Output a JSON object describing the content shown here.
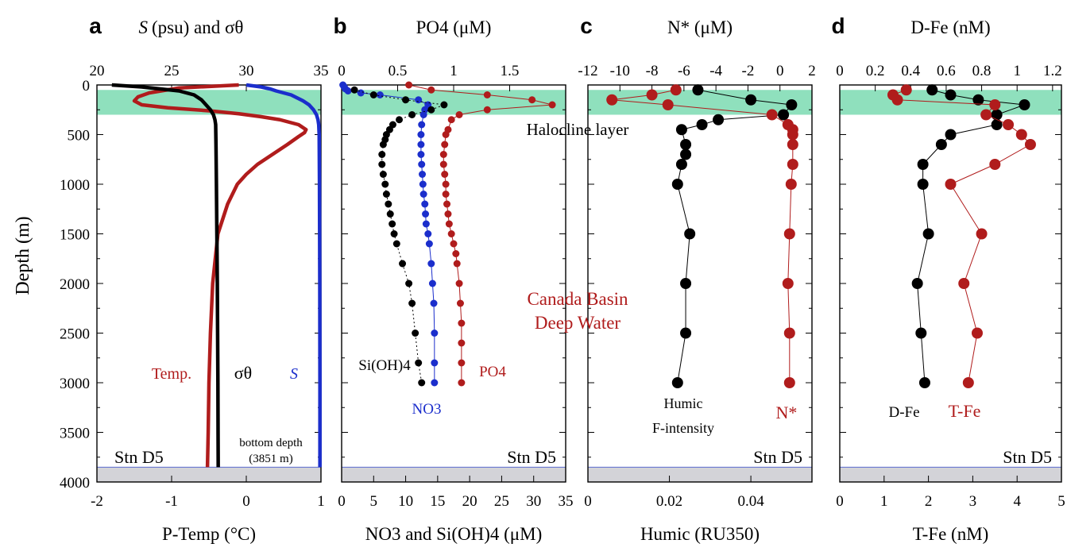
{
  "colors": {
    "black": "#000000",
    "red": "#b01c1c",
    "blue": "#1b2ecc",
    "halocline": "#8fe0bd",
    "bottom": "#d3d3d8"
  },
  "panels": [
    {
      "letter": "a",
      "top_title": "(psu) and σθ",
      "top_title_italic": "S",
      "top_ticks": [
        "20",
        "25",
        "30",
        "35"
      ],
      "bottom_ticks": [
        "-2",
        "-1",
        "0",
        "1"
      ],
      "bottom_label": "P-Temp (°C)",
      "station": "Stn D5",
      "annotations": {
        "temp": "Temp.",
        "sigma": "σθ",
        "sal": "S",
        "bottom1": "bottom depth",
        "bottom2": "(3851 m)"
      }
    },
    {
      "letter": "b",
      "top_title": "PO4 (μM)",
      "top_ticks": [
        "0",
        "0.5",
        "1",
        "1.5"
      ],
      "bottom_ticks": [
        "0",
        "5",
        "10",
        "15",
        "20",
        "25",
        "30",
        "35"
      ],
      "bottom_label": "NO3 and Si(OH)4 (μM)",
      "station": "Stn D5",
      "annotations": {
        "si": "Si(OH)4",
        "po4": "PO4",
        "no3": "NO3"
      }
    },
    {
      "letter": "c",
      "top_title": "N* (μM)",
      "top_ticks": [
        "-12",
        "-10",
        "-8",
        "-6",
        "-4",
        "-2",
        "0",
        "2"
      ],
      "bottom_ticks": [
        "0",
        "0.02",
        "0.04"
      ],
      "bottom_label": "Humic (RU350)",
      "station": "Stn D5",
      "annotations": {
        "humic1": "Humic",
        "humic2": "F-intensity",
        "nstar": "N*",
        "deep1": "Canada Basin",
        "deep2": "Deep Water",
        "halocline": "Halocline layer"
      }
    },
    {
      "letter": "d",
      "top_title": "D-Fe (nM)",
      "top_ticks": [
        "0",
        "0.2",
        "0.4",
        "0.6",
        "0.8",
        "1",
        "1.2"
      ],
      "bottom_ticks": [
        "0",
        "1",
        "2",
        "3",
        "4",
        "5"
      ],
      "bottom_label": "T-Fe (nM)",
      "station": "Stn D5",
      "annotations": {
        "dfe": "D-Fe",
        "tfe": "T-Fe"
      }
    }
  ],
  "y_axis": {
    "label": "Depth (m)",
    "ticks": [
      "0",
      "500",
      "1000",
      "1500",
      "2000",
      "2500",
      "3000",
      "3500",
      "4000"
    ]
  },
  "chart_data": [
    {
      "type": "line",
      "panel": "a",
      "ylim": [
        4000,
        0
      ],
      "halocline_depth": [
        50,
        300
      ],
      "bottom_depth": 3851,
      "series": [
        {
          "name": "Temp.",
          "axis": "bottom",
          "xlim": [
            -2,
            1
          ],
          "depth": [
            0,
            30,
            80,
            120,
            160,
            200,
            230,
            260,
            290,
            320,
            350,
            400,
            450,
            480,
            520,
            600,
            700,
            800,
            900,
            1000,
            1200,
            1500,
            2000,
            2500,
            3000,
            3500,
            3851
          ],
          "values": [
            -0.1,
            -0.9,
            -1.3,
            -1.45,
            -1.5,
            -1.4,
            -1.05,
            -0.5,
            -0.1,
            0.2,
            0.45,
            0.7,
            0.8,
            0.78,
            0.7,
            0.55,
            0.35,
            0.15,
            0.0,
            -0.12,
            -0.25,
            -0.38,
            -0.45,
            -0.48,
            -0.5,
            -0.51,
            -0.52
          ]
        },
        {
          "name": "σθ",
          "axis": "top",
          "xlim": [
            20,
            35
          ],
          "depth": [
            0,
            20,
            60,
            100,
            150,
            200,
            250,
            300,
            350,
            400,
            600,
            1000,
            1500,
            2000,
            2500,
            3000,
            3500,
            3851
          ],
          "values": [
            21.0,
            23.0,
            25.5,
            26.5,
            27.0,
            27.3,
            27.6,
            27.8,
            27.9,
            27.95,
            27.97,
            28.0,
            28.03,
            28.06,
            28.08,
            28.1,
            28.11,
            28.12
          ]
        },
        {
          "name": "S",
          "axis": "top",
          "xlim": [
            20,
            35
          ],
          "depth": [
            0,
            20,
            40,
            60,
            80,
            100,
            130,
            160,
            200,
            250,
            300,
            350,
            400,
            500,
            1000,
            2000,
            3000,
            3851
          ],
          "values": [
            30.0,
            31.0,
            31.6,
            32.0,
            32.5,
            33.0,
            33.4,
            33.8,
            34.2,
            34.5,
            34.7,
            34.8,
            34.85,
            34.88,
            34.9,
            34.92,
            34.93,
            34.93
          ]
        }
      ]
    },
    {
      "type": "scatter",
      "panel": "b",
      "ylim": [
        4000,
        0
      ],
      "series": [
        {
          "name": "PO4",
          "axis": "top",
          "xlim": [
            0,
            2.0
          ],
          "depth": [
            0,
            50,
            100,
            150,
            200,
            250,
            300,
            350,
            450,
            500,
            600,
            700,
            800,
            900,
            1000,
            1100,
            1200,
            1300,
            1400,
            1500,
            1600,
            1700,
            1800,
            2000,
            2200,
            2400,
            2600,
            2800,
            3000
          ],
          "values": [
            0.6,
            0.8,
            1.3,
            1.7,
            1.88,
            1.3,
            1.05,
            0.98,
            0.95,
            0.93,
            0.92,
            0.91,
            0.91,
            0.92,
            0.93,
            0.93,
            0.94,
            0.95,
            0.96,
            0.98,
            1.0,
            1.02,
            1.03,
            1.05,
            1.06,
            1.07,
            1.07,
            1.07,
            1.07
          ]
        },
        {
          "name": "NO3",
          "axis": "bottom",
          "xlim": [
            0,
            35
          ],
          "depth": [
            0,
            20,
            40,
            60,
            80,
            100,
            150,
            200,
            250,
            300,
            400,
            500,
            600,
            700,
            800,
            900,
            1000,
            1100,
            1200,
            1300,
            1400,
            1500,
            1600,
            1800,
            2000,
            2200,
            2500,
            2800,
            3000
          ],
          "values": [
            0.2,
            0.4,
            0.6,
            1.0,
            3.0,
            6.0,
            12.0,
            13.5,
            13.0,
            12.8,
            12.5,
            12.4,
            12.4,
            12.4,
            12.5,
            12.6,
            12.7,
            12.8,
            13.0,
            13.1,
            13.2,
            13.5,
            13.7,
            14.0,
            14.2,
            14.4,
            14.5,
            14.5,
            14.5
          ]
        },
        {
          "name": "Si(OH)4",
          "axis": "bottom",
          "xlim": [
            0,
            35
          ],
          "depth": [
            50,
            100,
            150,
            200,
            250,
            300,
            350,
            400,
            450,
            500,
            550,
            600,
            700,
            800,
            900,
            1000,
            1100,
            1200,
            1300,
            1400,
            1500,
            1600,
            1800,
            2000,
            2200,
            2500,
            2800,
            3000
          ],
          "values": [
            2.0,
            5.0,
            10.0,
            16.0,
            14.0,
            11.0,
            9.0,
            8.0,
            7.5,
            7.0,
            6.8,
            6.5,
            6.3,
            6.3,
            6.5,
            6.8,
            7.0,
            7.3,
            7.6,
            7.9,
            8.2,
            8.6,
            9.5,
            10.5,
            11.0,
            11.5,
            12.0,
            12.5
          ]
        }
      ]
    },
    {
      "type": "scatter",
      "panel": "c",
      "ylim": [
        4000,
        0
      ],
      "series": [
        {
          "name": "Humic F-intensity",
          "axis": "bottom",
          "xlim": [
            0,
            0.055
          ],
          "depth": [
            50,
            150,
            200,
            300,
            350,
            400,
            450,
            600,
            700,
            800,
            1000,
            1500,
            2000,
            2500,
            3000
          ],
          "values": [
            0.027,
            0.04,
            0.05,
            0.048,
            0.032,
            0.028,
            0.023,
            0.024,
            0.024,
            0.023,
            0.022,
            0.025,
            0.024,
            0.024,
            0.022
          ]
        },
        {
          "name": "N*",
          "axis": "top",
          "xlim": [
            -12,
            2
          ],
          "depth": [
            50,
            100,
            150,
            200,
            300,
            400,
            450,
            500,
            600,
            800,
            1000,
            1500,
            2000,
            2500,
            3000
          ],
          "values": [
            -6.5,
            -8.0,
            -10.5,
            -7.0,
            -0.5,
            0.5,
            0.8,
            0.8,
            0.8,
            0.8,
            0.7,
            0.6,
            0.5,
            0.6,
            0.6
          ]
        }
      ]
    },
    {
      "type": "scatter",
      "panel": "d",
      "ylim": [
        4000,
        0
      ],
      "series": [
        {
          "name": "D-Fe",
          "axis": "top",
          "xlim": [
            0,
            1.2
          ],
          "depth": [
            50,
            100,
            150,
            200,
            300,
            400,
            500,
            600,
            800,
            1000,
            1500,
            2000,
            2500,
            3000
          ],
          "values": [
            0.5,
            0.6,
            0.75,
            1.0,
            0.85,
            0.85,
            0.6,
            0.55,
            0.45,
            0.45,
            0.48,
            0.42,
            0.44,
            0.46
          ]
        },
        {
          "name": "T-Fe",
          "axis": "bottom",
          "xlim": [
            0,
            5
          ],
          "depth": [
            50,
            100,
            150,
            200,
            300,
            400,
            500,
            600,
            800,
            1000,
            1500,
            2000,
            2500,
            3000
          ],
          "values": [
            1.5,
            1.2,
            1.3,
            3.5,
            3.3,
            3.8,
            4.1,
            4.3,
            3.5,
            2.5,
            3.2,
            2.8,
            3.1,
            2.9
          ]
        }
      ]
    }
  ]
}
